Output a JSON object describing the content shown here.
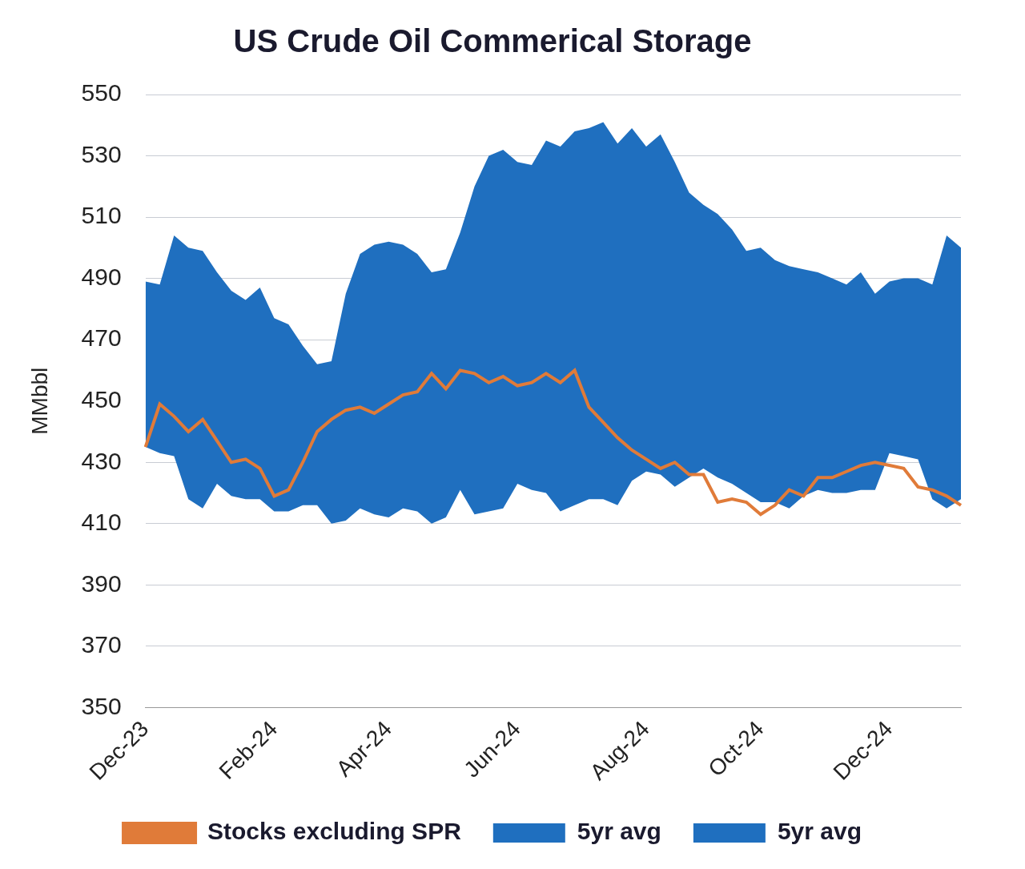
{
  "chart_data": {
    "type": "line",
    "title": "US Crude Oil Commerical Storage",
    "y_label": "MMbbl",
    "categories": [
      "Dec-23",
      null,
      null,
      null,
      null,
      null,
      null,
      null,
      null,
      "Feb-24",
      null,
      null,
      null,
      null,
      null,
      null,
      null,
      "Apr-24",
      null,
      null,
      null,
      null,
      null,
      null,
      null,
      null,
      "Jun-24",
      null,
      null,
      null,
      null,
      null,
      null,
      null,
      null,
      "Aug-24",
      null,
      null,
      null,
      null,
      null,
      null,
      null,
      "Oct-24",
      null,
      null,
      null,
      null,
      null,
      null,
      null,
      null,
      "Dec-24",
      null,
      null,
      null,
      null,
      null
    ],
    "series": [
      {
        "name": "5yr avg",
        "type": "area",
        "color": "#1f6fbf",
        "values": [
          489,
          488,
          504,
          500,
          499,
          492,
          486,
          483,
          487,
          477,
          475,
          468,
          462,
          463,
          485,
          498,
          501,
          502,
          501,
          498,
          492,
          493,
          505,
          520,
          530,
          532,
          528,
          527,
          535,
          533,
          538,
          539,
          541,
          534,
          539,
          533,
          537,
          528,
          518,
          514,
          511,
          506,
          499,
          500,
          496,
          494,
          493,
          492,
          490,
          488,
          492,
          485,
          489,
          490,
          490,
          488,
          504,
          500
        ],
        "lower": [
          435,
          433,
          432,
          418,
          415,
          423,
          419,
          418,
          418,
          414,
          414,
          416,
          416,
          410,
          411,
          415,
          413,
          412,
          415,
          414,
          410,
          412,
          421,
          413,
          414,
          415,
          423,
          421,
          420,
          414,
          416,
          418,
          418,
          416,
          424,
          427,
          426,
          422,
          425,
          428,
          425,
          423,
          420,
          417,
          417,
          415,
          419,
          421,
          420,
          420,
          421,
          421,
          433,
          432,
          431,
          418,
          415,
          418
        ]
      },
      {
        "name": "Stocks excluding SPR",
        "type": "line",
        "color": "#e07b39",
        "values": [
          435,
          449,
          445,
          440,
          444,
          437,
          430,
          431,
          428,
          419,
          421,
          430,
          440,
          444,
          447,
          448,
          446,
          449,
          452,
          453,
          459,
          454,
          460,
          459,
          456,
          458,
          455,
          456,
          459,
          456,
          460,
          448,
          443,
          438,
          434,
          431,
          428,
          430,
          426,
          426,
          417,
          418,
          417,
          413,
          416,
          421,
          419,
          425,
          425,
          427,
          429,
          430,
          429,
          428,
          422,
          421,
          419,
          416
        ]
      }
    ],
    "ylim": [
      350,
      550
    ],
    "yticks": [
      350,
      370,
      390,
      410,
      430,
      450,
      470,
      490,
      510,
      530,
      550
    ],
    "grid": true,
    "legend": "bottom"
  }
}
